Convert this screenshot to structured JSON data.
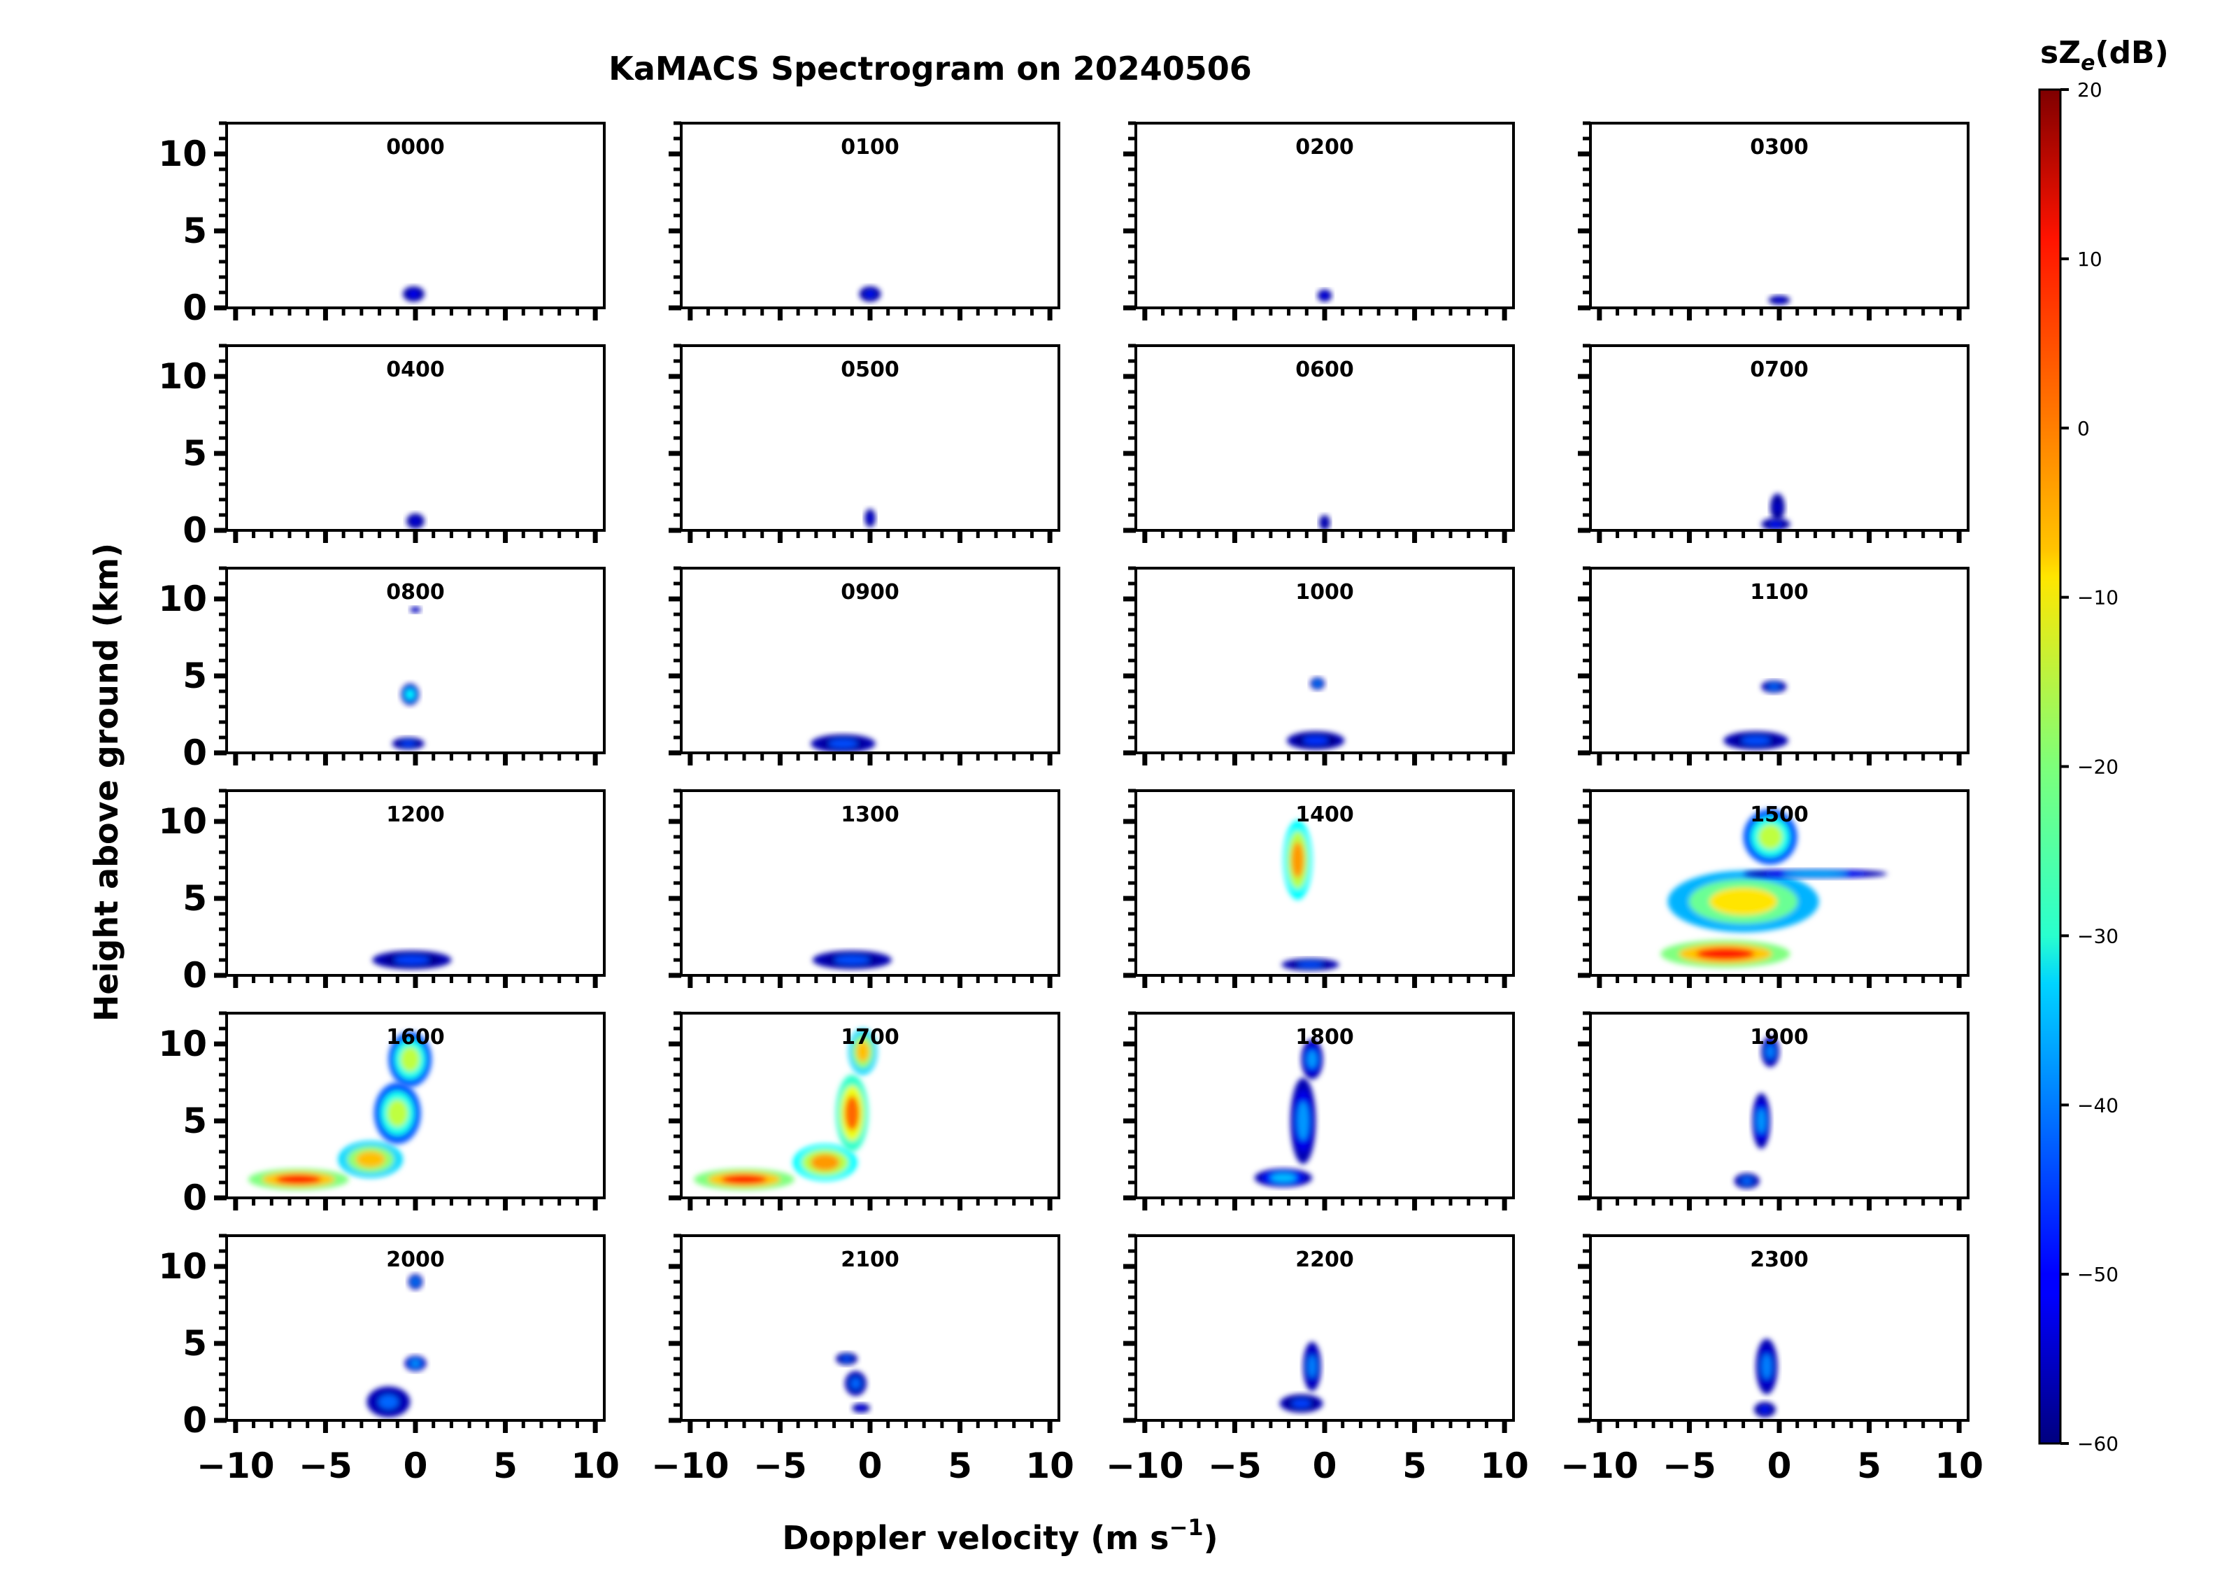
{
  "chart_data": {
    "type": "heatmap",
    "title": "KaMACS Spectrogram on 20240506",
    "xlabel_main": "Doppler velocity (m s",
    "xlabel_sup": "−1",
    "xlabel_close": ")",
    "ylabel": "Height above ground (km)",
    "colorbar": {
      "label_main": "sZ",
      "label_sub": "e",
      "label_unit": "(dB)",
      "range": [
        -60,
        20
      ],
      "ticks": [
        "20",
        "10",
        "0",
        "−10",
        "−20",
        "−30",
        "−40",
        "−50",
        "−60"
      ],
      "tick_values": [
        20,
        10,
        0,
        -10,
        -20,
        -30,
        -40,
        -50,
        -60
      ],
      "colormap": "jet"
    },
    "x_range": [
      -10.5,
      10.5
    ],
    "y_range": [
      0,
      12
    ],
    "x_ticks": [
      "−10",
      "−5",
      "0",
      "5",
      "10"
    ],
    "x_tick_values": [
      -10,
      -5,
      0,
      5,
      10
    ],
    "y_ticks": [
      "0",
      "5",
      "10"
    ],
    "y_tick_values": [
      0,
      5,
      10
    ],
    "panels": [
      {
        "label": "0000",
        "blobs": [
          {
            "v": -0.1,
            "h": 0.9,
            "sv": 0.6,
            "sh": 0.5,
            "db": -50
          }
        ]
      },
      {
        "label": "0100",
        "blobs": [
          {
            "v": 0.0,
            "h": 0.9,
            "sv": 0.6,
            "sh": 0.5,
            "db": -48
          }
        ]
      },
      {
        "label": "0200",
        "blobs": [
          {
            "v": 0.0,
            "h": 0.8,
            "sv": 0.4,
            "sh": 0.4,
            "db": -50
          }
        ]
      },
      {
        "label": "0300",
        "blobs": [
          {
            "v": 0.0,
            "h": 0.5,
            "sv": 0.6,
            "sh": 0.3,
            "db": -52
          }
        ]
      },
      {
        "label": "0400",
        "blobs": [
          {
            "v": 0.0,
            "h": 0.6,
            "sv": 0.5,
            "sh": 0.5,
            "db": -52
          }
        ]
      },
      {
        "label": "0500",
        "blobs": [
          {
            "v": 0.0,
            "h": 0.8,
            "sv": 0.3,
            "sh": 0.6,
            "db": -52
          }
        ]
      },
      {
        "label": "0600",
        "blobs": [
          {
            "v": 0.0,
            "h": 0.5,
            "sv": 0.3,
            "sh": 0.5,
            "db": -54
          }
        ]
      },
      {
        "label": "0700",
        "blobs": [
          {
            "v": -0.2,
            "h": 0.4,
            "sv": 0.8,
            "sh": 0.4,
            "db": -48
          },
          {
            "v": -0.1,
            "h": 1.5,
            "sv": 0.4,
            "sh": 0.9,
            "db": -54
          }
        ]
      },
      {
        "label": "0800",
        "blobs": [
          {
            "v": -0.3,
            "h": 3.8,
            "sv": 0.5,
            "sh": 0.7,
            "db": -30
          },
          {
            "v": -0.4,
            "h": 0.6,
            "sv": 0.9,
            "sh": 0.4,
            "db": -45
          },
          {
            "v": 0.0,
            "h": 9.3,
            "sv": 0.3,
            "sh": 0.2,
            "db": -50
          }
        ]
      },
      {
        "label": "0900",
        "blobs": [
          {
            "v": -1.5,
            "h": 0.6,
            "sv": 1.8,
            "sh": 0.6,
            "db": -44
          }
        ]
      },
      {
        "label": "1000",
        "blobs": [
          {
            "v": -0.4,
            "h": 4.5,
            "sv": 0.4,
            "sh": 0.4,
            "db": -40
          },
          {
            "v": -0.5,
            "h": 0.8,
            "sv": 1.6,
            "sh": 0.6,
            "db": -46
          }
        ]
      },
      {
        "label": "1100",
        "blobs": [
          {
            "v": -0.3,
            "h": 4.3,
            "sv": 0.7,
            "sh": 0.4,
            "db": -42
          },
          {
            "v": -1.3,
            "h": 0.8,
            "sv": 1.8,
            "sh": 0.6,
            "db": -44
          }
        ]
      },
      {
        "label": "1200",
        "blobs": [
          {
            "v": -0.2,
            "h": 1.0,
            "sv": 2.2,
            "sh": 0.6,
            "db": -45
          }
        ]
      },
      {
        "label": "1300",
        "blobs": [
          {
            "v": -1.0,
            "h": 1.0,
            "sv": 2.2,
            "sh": 0.6,
            "db": -44
          }
        ]
      },
      {
        "label": "1400",
        "blobs": [
          {
            "v": -1.5,
            "h": 7.5,
            "sv": 0.8,
            "sh": 2.6,
            "db": -2
          },
          {
            "v": -0.8,
            "h": 0.7,
            "sv": 1.6,
            "sh": 0.4,
            "db": -44
          }
        ]
      },
      {
        "label": "1500",
        "blobs": [
          {
            "v": -3.0,
            "h": 1.4,
            "sv": 3.6,
            "sh": 0.9,
            "db": 8
          },
          {
            "v": -2.0,
            "h": 4.8,
            "sv": 4.2,
            "sh": 2.0,
            "db": -8
          },
          {
            "v": -0.5,
            "h": 9.0,
            "sv": 1.5,
            "sh": 1.8,
            "db": -15
          },
          {
            "v": 2.0,
            "h": 6.6,
            "sv": 4.0,
            "sh": 0.3,
            "db": -35
          }
        ]
      },
      {
        "label": "1600",
        "blobs": [
          {
            "v": -6.5,
            "h": 1.2,
            "sv": 2.8,
            "sh": 0.7,
            "db": 8
          },
          {
            "v": -2.5,
            "h": 2.5,
            "sv": 1.8,
            "sh": 1.2,
            "db": -5
          },
          {
            "v": -1.0,
            "h": 5.5,
            "sv": 1.3,
            "sh": 2.0,
            "db": -15
          },
          {
            "v": -0.3,
            "h": 9.0,
            "sv": 1.2,
            "sh": 1.8,
            "db": -15
          }
        ]
      },
      {
        "label": "1700",
        "blobs": [
          {
            "v": -7.0,
            "h": 1.2,
            "sv": 2.8,
            "sh": 0.7,
            "db": 8
          },
          {
            "v": -2.5,
            "h": 2.3,
            "sv": 1.8,
            "sh": 1.2,
            "db": -2
          },
          {
            "v": -1.0,
            "h": 5.5,
            "sv": 0.9,
            "sh": 2.5,
            "db": 2
          },
          {
            "v": -0.4,
            "h": 9.5,
            "sv": 0.8,
            "sh": 1.5,
            "db": -5
          }
        ]
      },
      {
        "label": "1800",
        "blobs": [
          {
            "v": -2.3,
            "h": 1.3,
            "sv": 1.6,
            "sh": 0.6,
            "db": -35
          },
          {
            "v": -1.2,
            "h": 5.0,
            "sv": 0.7,
            "sh": 2.8,
            "db": -38
          },
          {
            "v": -0.7,
            "h": 9.0,
            "sv": 0.6,
            "sh": 1.3,
            "db": -38
          }
        ]
      },
      {
        "label": "1900",
        "blobs": [
          {
            "v": -1.8,
            "h": 1.1,
            "sv": 0.7,
            "sh": 0.5,
            "db": -42
          },
          {
            "v": -1.0,
            "h": 5.0,
            "sv": 0.5,
            "sh": 1.8,
            "db": -38
          },
          {
            "v": -0.5,
            "h": 9.5,
            "sv": 0.5,
            "sh": 1.0,
            "db": -40
          }
        ]
      },
      {
        "label": "2000",
        "blobs": [
          {
            "v": -1.5,
            "h": 1.2,
            "sv": 1.2,
            "sh": 1.0,
            "db": -42
          },
          {
            "v": 0.0,
            "h": 3.7,
            "sv": 0.6,
            "sh": 0.5,
            "db": -38
          },
          {
            "v": 0.0,
            "h": 9.0,
            "sv": 0.4,
            "sh": 0.5,
            "db": -40
          }
        ]
      },
      {
        "label": "2100",
        "blobs": [
          {
            "v": -1.3,
            "h": 4.0,
            "sv": 0.6,
            "sh": 0.4,
            "db": -44
          },
          {
            "v": -0.8,
            "h": 2.4,
            "sv": 0.6,
            "sh": 0.8,
            "db": -42
          },
          {
            "v": -0.5,
            "h": 0.8,
            "sv": 0.5,
            "sh": 0.3,
            "db": -50
          }
        ]
      },
      {
        "label": "2200",
        "blobs": [
          {
            "v": -1.3,
            "h": 1.1,
            "sv": 1.2,
            "sh": 0.6,
            "db": -45
          },
          {
            "v": -0.7,
            "h": 3.5,
            "sv": 0.5,
            "sh": 1.6,
            "db": -40
          }
        ]
      },
      {
        "label": "2300",
        "blobs": [
          {
            "v": -0.7,
            "h": 3.5,
            "sv": 0.6,
            "sh": 1.8,
            "db": -40
          },
          {
            "v": -0.8,
            "h": 0.7,
            "sv": 0.6,
            "sh": 0.5,
            "db": -48
          }
        ]
      }
    ]
  }
}
